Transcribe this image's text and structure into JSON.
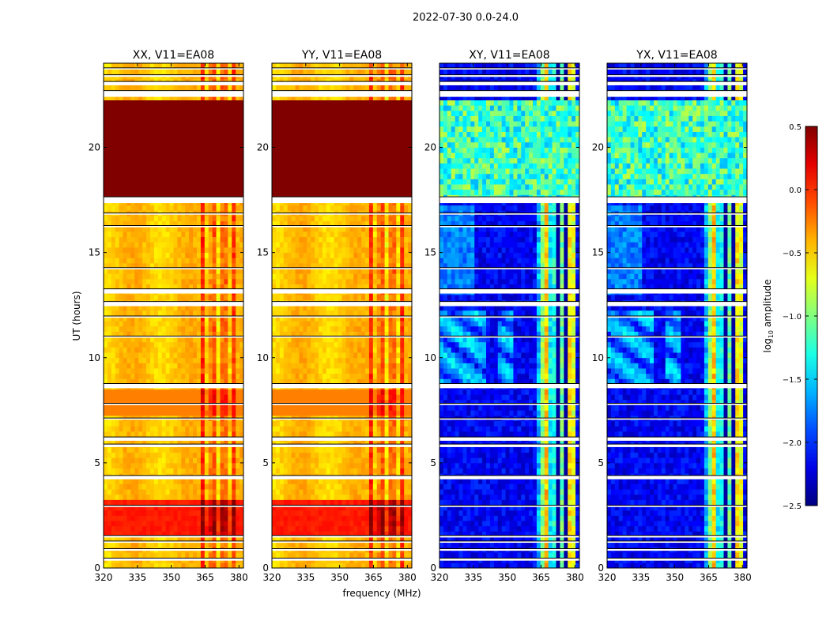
{
  "figure": {
    "title": "2022-07-30 0.0-24.0",
    "ylabel": "UT (hours)",
    "xlabel": "frequency (MHz)"
  },
  "chart_data": {
    "type": "heatmap",
    "title": "2022-07-30 0.0-24.0",
    "xlabel": "frequency (MHz)",
    "ylabel": "UT (hours)",
    "xlim": [
      320,
      382
    ],
    "ylim": [
      0,
      24
    ],
    "xticks": [
      320,
      335,
      350,
      365,
      380
    ],
    "yticks": [
      0,
      5,
      10,
      15,
      20
    ],
    "colorbar": {
      "label_main": "log",
      "label_sub": "10",
      "label_tail": " amplitude",
      "range": [
        -2.5,
        0.5
      ],
      "ticks": [
        "0.5",
        "0.0",
        "−0.5",
        "−1.0",
        "−1.5",
        "−2.0",
        "−2.5"
      ],
      "tick_values": [
        0.5,
        0.0,
        -0.5,
        -1.0,
        -1.5,
        -2.0,
        -2.5
      ],
      "colormap": "jet"
    },
    "panels": [
      {
        "name": "XX, V11=EA08",
        "kind": "parallel"
      },
      {
        "name": "YY, V11=EA08",
        "kind": "parallel"
      },
      {
        "name": "XY, V11=EA08",
        "kind": "cross"
      },
      {
        "name": "YX, V11=EA08",
        "kind": "cross"
      }
    ],
    "gaps_ut_hours": [
      [
        0.35,
        0.12
      ],
      [
        0.82,
        0.1
      ],
      [
        1.2,
        0.08
      ],
      [
        1.45,
        0.1
      ],
      [
        2.9,
        0.08
      ],
      [
        4.22,
        0.18
      ],
      [
        5.75,
        0.14
      ],
      [
        6.05,
        0.18
      ],
      [
        7.05,
        0.08
      ],
      [
        7.75,
        0.08
      ],
      [
        8.55,
        0.22
      ],
      [
        10.95,
        0.08
      ],
      [
        11.9,
        0.08
      ],
      [
        12.45,
        0.22
      ],
      [
        13.05,
        0.22
      ],
      [
        14.2,
        0.08
      ],
      [
        16.2,
        0.08
      ],
      [
        16.8,
        0.08
      ],
      [
        17.35,
        0.3
      ],
      [
        22.4,
        0.3
      ],
      [
        22.95,
        0.18
      ],
      [
        23.35,
        0.1
      ],
      [
        23.7,
        0.08
      ]
    ]
  }
}
